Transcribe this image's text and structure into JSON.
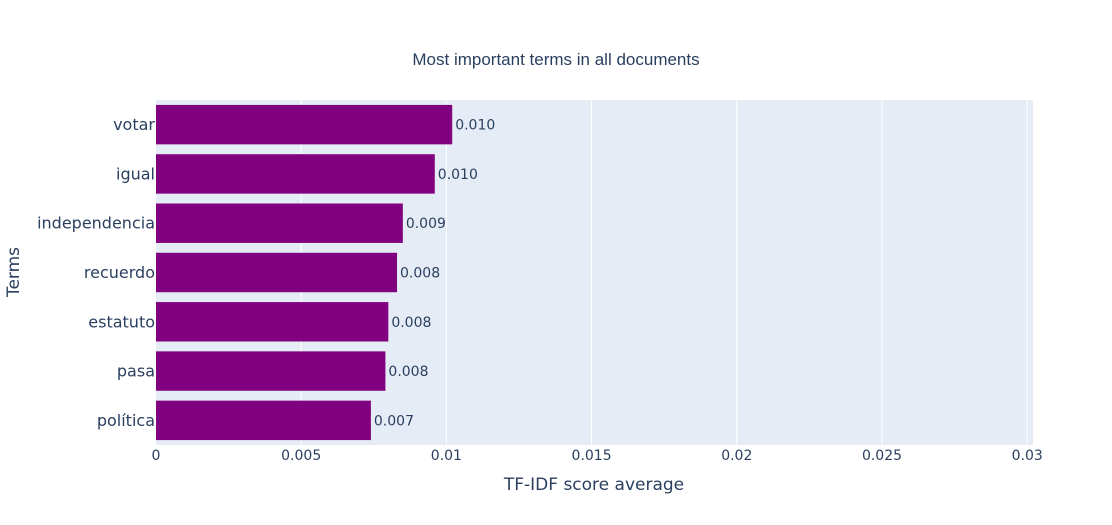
{
  "chart_data": {
    "type": "bar",
    "orientation": "horizontal",
    "title": "Most important terms in all documents",
    "xlabel": "TF-IDF score average",
    "ylabel": "Terms",
    "categories": [
      "votar",
      "igual",
      "independencia",
      "recuerdo",
      "estatuto",
      "pasa",
      "política"
    ],
    "values": [
      0.0102,
      0.0096,
      0.0085,
      0.0083,
      0.008,
      0.0079,
      0.0074
    ],
    "data_labels": [
      "0.010",
      "0.010",
      "0.009",
      "0.008",
      "0.008",
      "0.008",
      "0.007"
    ],
    "xlim": [
      0,
      0.0302
    ],
    "xticks": [
      0,
      0.005,
      0.01,
      0.015,
      0.02,
      0.025,
      0.03
    ],
    "xtick_labels": [
      "0",
      "0.005",
      "0.01",
      "0.015",
      "0.02",
      "0.025",
      "0.03"
    ],
    "bar_color": "#800080",
    "plot_bgcolor": "#e5ecf6",
    "grid": true
  }
}
